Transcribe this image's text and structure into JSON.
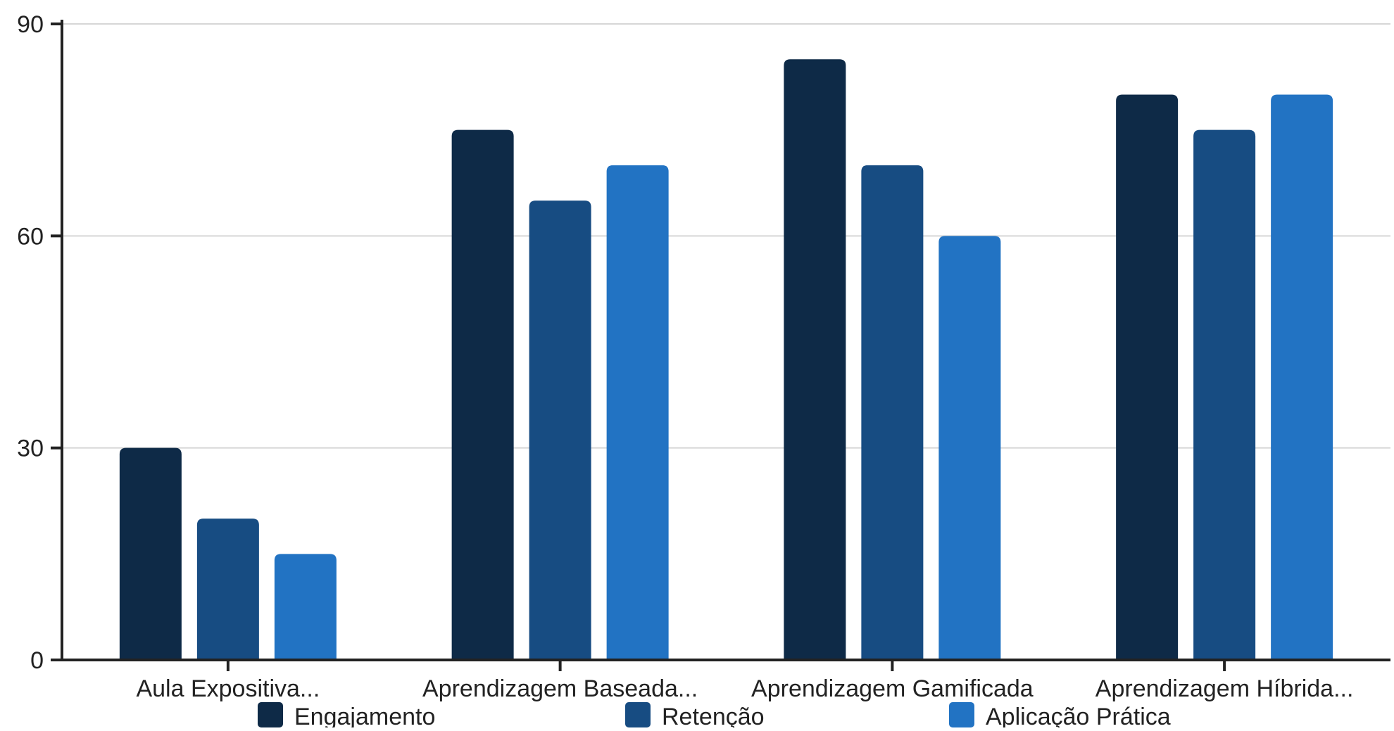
{
  "chart_data": {
    "type": "bar",
    "title": "",
    "xlabel": "",
    "ylabel": "",
    "categories": [
      "Aula Expositiva...",
      "Aprendizagem Baseada...",
      "Aprendizagem Gamificada",
      "Aprendizagem Híbrida..."
    ],
    "series": [
      {
        "name": "Engajamento",
        "color": "#0e2a47",
        "values": [
          30,
          75,
          85,
          80
        ]
      },
      {
        "name": "Retenção",
        "color": "#174c82",
        "values": [
          20,
          65,
          70,
          75
        ]
      },
      {
        "name": "Aplicação Prática",
        "color": "#2273c3",
        "values": [
          15,
          70,
          60,
          80
        ]
      }
    ],
    "ylim": [
      0,
      90
    ],
    "yticks": [
      0,
      30,
      60,
      90
    ],
    "grid": true,
    "legend_position": "bottom"
  }
}
